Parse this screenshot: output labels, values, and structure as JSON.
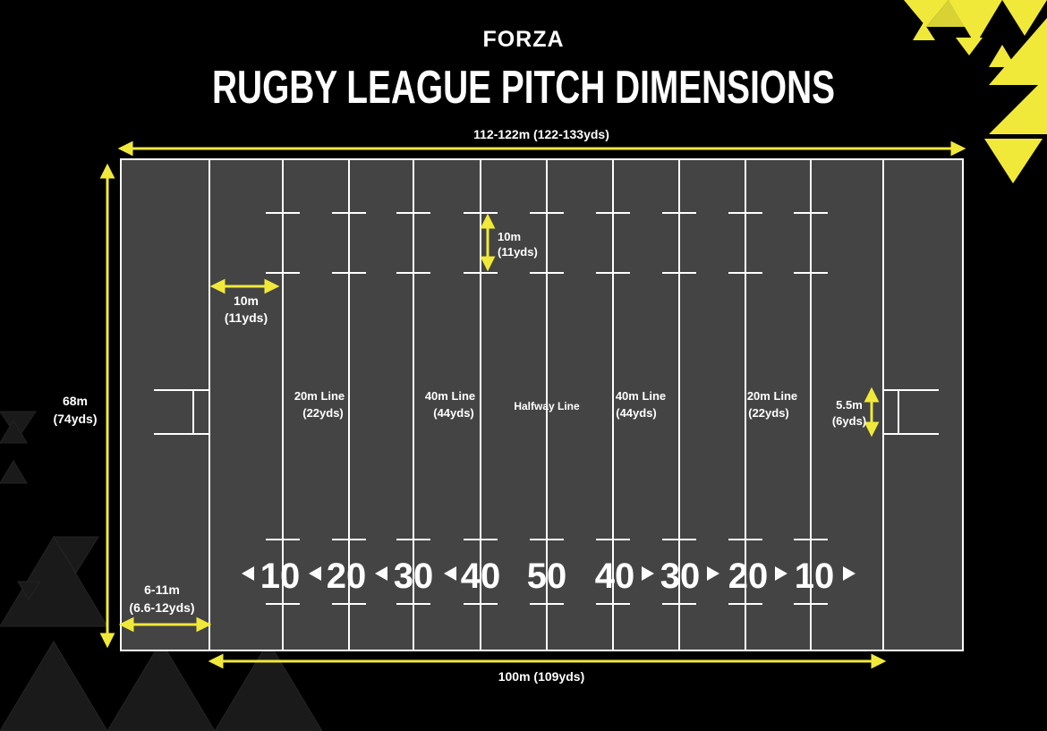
{
  "brand": "FORZA",
  "title": "RUGBY LEAGUE PITCH DIMENSIONS",
  "colors": {
    "background": "#000000",
    "pitch": "#444444",
    "line": "#ffffff",
    "accent": "#f1e93a"
  },
  "dimensions": {
    "overall_length": "112-122m (122-133yds)",
    "width_m": "68m",
    "width_yd": "(74yds)",
    "field_length": "100m (109yds)",
    "in_goal_m": "6-11m",
    "in_goal_yd": "(6.6-12yds)",
    "ten_m_h": "10m",
    "ten_yd_h": "(11yds)",
    "ten_m_v": "10m",
    "ten_yd_v": "(11yds)",
    "posts_m": "5.5m",
    "posts_yd": "(6yds)"
  },
  "line_labels": {
    "left_20_name": "20m Line",
    "left_20_yd": "(22yds)",
    "left_40_name": "40m Line",
    "left_40_yd": "(44yds)",
    "halfway": "Halfway Line",
    "right_40_name": "40m Line",
    "right_40_yd": "(44yds)",
    "right_20_name": "20m Line",
    "right_20_yd": "(22yds)"
  },
  "yard_markers": [
    "10",
    "20",
    "30",
    "40",
    "50",
    "40",
    "30",
    "20",
    "10"
  ]
}
